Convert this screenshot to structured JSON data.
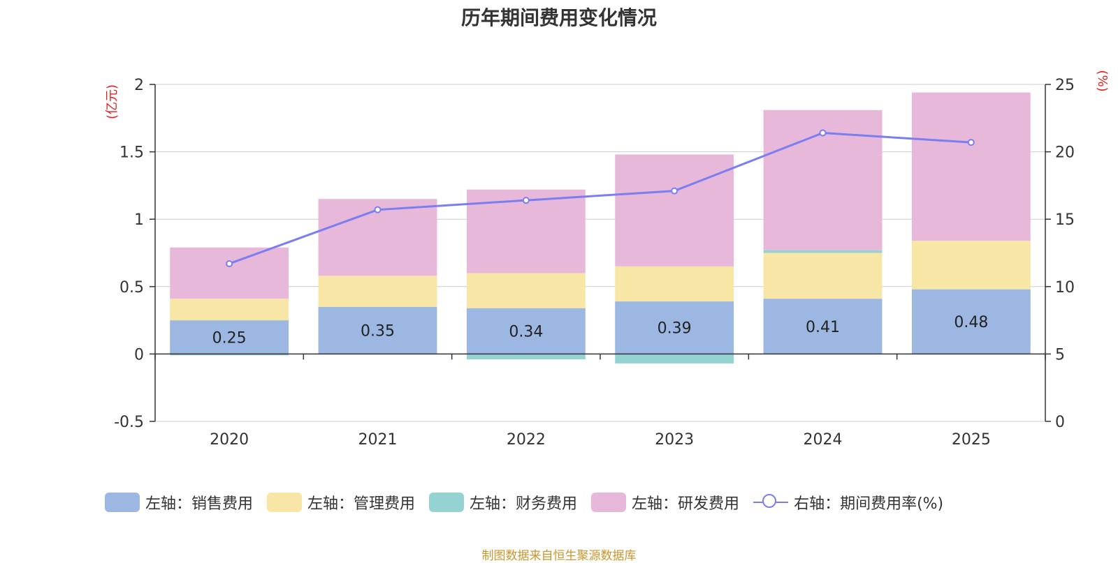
{
  "title": "历年期间费用变化情况",
  "source": "制图数据来自恒生聚源数据库",
  "colors": {
    "sales": "#9bb7e2",
    "admin": "#f8e6a6",
    "finance": "#95d3d3",
    "rd": "#e7b8d9",
    "rate": "#7b7ef0"
  },
  "legend": [
    {
      "label": "左轴：销售费用",
      "color": "#9bb7e2"
    },
    {
      "label": "左轴：管理费用",
      "color": "#f8e6a6"
    },
    {
      "label": "左轴：财务费用",
      "color": "#95d3d3"
    },
    {
      "label": "左轴：研发费用",
      "color": "#e7b8d9"
    },
    {
      "label": "右轴：期间费用率(%)",
      "color": "#7b7ef0"
    }
  ],
  "chart_data": {
    "type": "bar",
    "stacked": true,
    "title": "历年期间费用变化情况",
    "categories": [
      "2020",
      "2021",
      "2022",
      "2023",
      "2024",
      "2025"
    ],
    "series": [
      {
        "name": "左轴：销售费用",
        "axis": "left",
        "values": [
          0.25,
          0.35,
          0.34,
          0.39,
          0.41,
          0.48
        ],
        "labels": [
          "0.25",
          "0.35",
          "0.34",
          "0.39",
          "0.41",
          "0.48"
        ]
      },
      {
        "name": "左轴：管理费用",
        "axis": "left",
        "values": [
          0.16,
          0.23,
          0.26,
          0.26,
          0.34,
          0.36
        ]
      },
      {
        "name": "左轴：财务费用",
        "axis": "left",
        "values": [
          -0.01,
          0.0,
          -0.04,
          -0.07,
          0.02,
          0.0
        ]
      },
      {
        "name": "左轴：研发费用",
        "axis": "left",
        "values": [
          0.38,
          0.57,
          0.62,
          0.83,
          1.04,
          1.1
        ]
      },
      {
        "name": "右轴：期间费用率(%)",
        "axis": "right",
        "type": "line",
        "values": [
          11.7,
          15.7,
          16.4,
          17.1,
          21.4,
          20.7
        ]
      }
    ],
    "left_axis": {
      "label": "(亿元)",
      "ylim": [
        -0.5,
        2
      ],
      "ticks": [
        "-0.5",
        "0",
        "0.5",
        "1",
        "1.5",
        "2"
      ]
    },
    "right_axis": {
      "label": "(%)",
      "ylim": [
        0,
        25
      ],
      "ticks": [
        "0",
        "5",
        "10",
        "15",
        "20",
        "25"
      ]
    },
    "legend_position": "bottom",
    "grid": true
  }
}
